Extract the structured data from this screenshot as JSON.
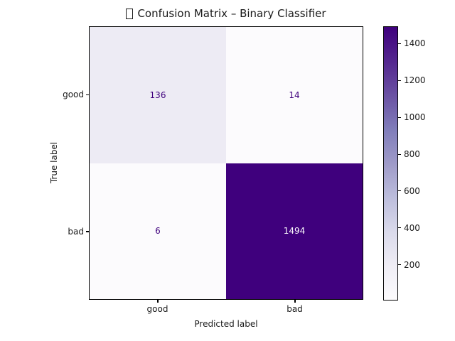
{
  "figure": {
    "title_full": "□ Confusion Matrix – Binary Classifier",
    "title_text": "Confusion Matrix – Binary Classifier",
    "background": "#ffffff"
  },
  "icons": {
    "title_missing_glyph": "missing-glyph-box"
  },
  "chart_data": {
    "type": "heatmap",
    "subtype": "confusion-matrix",
    "title": "□ Confusion Matrix – Binary Classifier",
    "title_text": "Confusion Matrix – Binary Classifier",
    "xlabel": "Predicted label",
    "ylabel": "True label",
    "x_categories": [
      "good",
      "bad"
    ],
    "y_categories": [
      "good",
      "bad"
    ],
    "matrix": [
      [
        136,
        14
      ],
      [
        6,
        1494
      ]
    ],
    "cells": [
      {
        "row": "good",
        "col": "good",
        "value": "136",
        "bg": "#edebf4",
        "fg": "#3f007d"
      },
      {
        "row": "good",
        "col": "bad",
        "value": "14",
        "bg": "#fcfbfd",
        "fg": "#3f007d"
      },
      {
        "row": "bad",
        "col": "good",
        "value": "6",
        "bg": "#fcfbfd",
        "fg": "#3f007d"
      },
      {
        "row": "bad",
        "col": "bad",
        "value": "1494",
        "bg": "#3f007d",
        "fg": "#fcfbfd"
      }
    ],
    "colormap": {
      "name": "Purples",
      "stops": [
        "#fcfbfd",
        "#efedf5",
        "#dadaeb",
        "#bcbddc",
        "#9e9ac8",
        "#807dba",
        "#6a51a3",
        "#54278f",
        "#3f007d"
      ]
    },
    "colorbar": {
      "position": "right",
      "vmin": 6,
      "vmax": 1494,
      "ticks": [
        200,
        400,
        600,
        800,
        1000,
        1200,
        1400
      ]
    },
    "grid": false,
    "legend": null
  }
}
